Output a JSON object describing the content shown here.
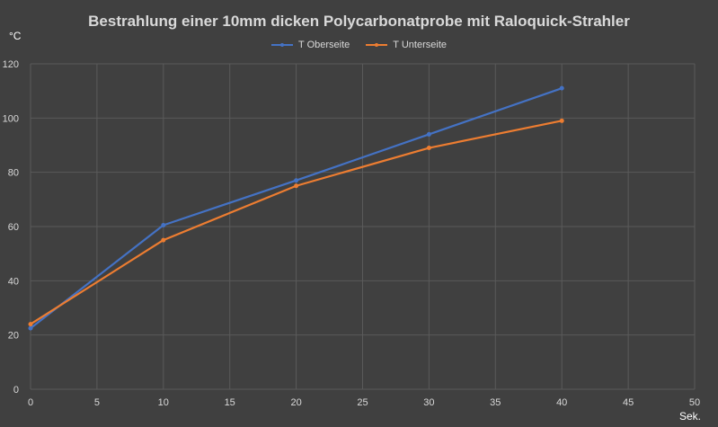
{
  "chart_data": {
    "type": "line",
    "title": "Bestrahlung einer 10mm dicken Polycarbonatprobe mit Raloquick-Strahler",
    "ylabel": "°C",
    "xlabel": "Sek.",
    "xlim": [
      0,
      50
    ],
    "ylim": [
      0,
      120
    ],
    "xticks": [
      0,
      5,
      10,
      15,
      20,
      25,
      30,
      35,
      40,
      45,
      50
    ],
    "yticks": [
      0,
      20,
      40,
      60,
      80,
      100,
      120
    ],
    "grid": true,
    "legend_position": "top",
    "series": [
      {
        "name": "T Oberseite",
        "color": "#4472c4",
        "x": [
          0,
          10,
          20,
          30,
          40
        ],
        "y": [
          22.5,
          60.5,
          77,
          94,
          111
        ]
      },
      {
        "name": "T Unterseite",
        "color": "#ed7d31",
        "x": [
          0,
          10,
          20,
          30,
          40
        ],
        "y": [
          24,
          55,
          75,
          89,
          99
        ]
      }
    ]
  },
  "colors": {
    "background": "#404040",
    "grid": "#5a5a5a",
    "text": "#d9d9d9"
  }
}
